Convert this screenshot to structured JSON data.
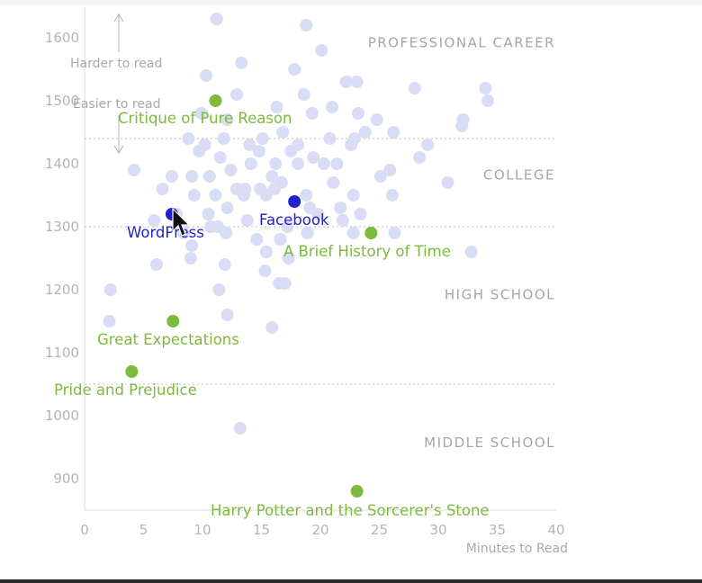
{
  "chart_data": {
    "type": "scatter",
    "title": "",
    "xlabel": "Minutes to Read",
    "ylabel": "",
    "xlim": [
      0,
      40
    ],
    "ylim": [
      850,
      1650
    ],
    "x_ticks": [
      0,
      5,
      10,
      15,
      20,
      25,
      30,
      35,
      40
    ],
    "y_ticks": [
      900,
      1000,
      1100,
      1200,
      1300,
      1400,
      1500,
      1600
    ],
    "grid": false,
    "colors": {
      "background_points": "#d9dcf5",
      "books": "#7cbb3c",
      "websites": "#2222cc",
      "bands": "#a6a6a6"
    },
    "bands": [
      {
        "label": "PROFESSIONAL CAREER",
        "lower": 1440
      },
      {
        "label": "COLLEGE",
        "lower": 1300
      },
      {
        "label": "HIGH SCHOOL",
        "lower": 1050
      },
      {
        "label": "MIDDLE SCHOOL",
        "lower": null
      }
    ],
    "annotations": {
      "harder": "Harder to read",
      "easier": "Easier to read"
    },
    "background_points": [
      [
        11.2,
        1630
      ],
      [
        18.8,
        1620
      ],
      [
        13.3,
        1560
      ],
      [
        17.8,
        1550
      ],
      [
        20.1,
        1580
      ],
      [
        10.3,
        1540
      ],
      [
        12.9,
        1510
      ],
      [
        18.6,
        1510
      ],
      [
        22.2,
        1530
      ],
      [
        23.1,
        1530
      ],
      [
        28,
        1520
      ],
      [
        34,
        1520
      ],
      [
        34.2,
        1500
      ],
      [
        9.9,
        1480
      ],
      [
        12.1,
        1470
      ],
      [
        16.3,
        1490
      ],
      [
        19.3,
        1480
      ],
      [
        21,
        1490
      ],
      [
        23.2,
        1480
      ],
      [
        24.8,
        1470
      ],
      [
        32.1,
        1470
      ],
      [
        32,
        1460
      ],
      [
        8.8,
        1440
      ],
      [
        10.2,
        1430
      ],
      [
        11.8,
        1440
      ],
      [
        14,
        1430
      ],
      [
        15.1,
        1440
      ],
      [
        16.8,
        1450
      ],
      [
        18.1,
        1430
      ],
      [
        20.8,
        1440
      ],
      [
        22.9,
        1440
      ],
      [
        23.8,
        1450
      ],
      [
        26.2,
        1450
      ],
      [
        29.1,
        1430
      ],
      [
        9.7,
        1420
      ],
      [
        11.5,
        1410
      ],
      [
        14.8,
        1420
      ],
      [
        16.2,
        1400
      ],
      [
        17.5,
        1420
      ],
      [
        19.4,
        1410
      ],
      [
        20.3,
        1400
      ],
      [
        22.6,
        1430
      ],
      [
        4.2,
        1390
      ],
      [
        7.4,
        1380
      ],
      [
        9.1,
        1380
      ],
      [
        10.6,
        1380
      ],
      [
        12.4,
        1390
      ],
      [
        14.1,
        1400
      ],
      [
        15.9,
        1380
      ],
      [
        18.1,
        1400
      ],
      [
        21.4,
        1400
      ],
      [
        25.1,
        1380
      ],
      [
        25.9,
        1390
      ],
      [
        28.4,
        1410
      ],
      [
        6.6,
        1360
      ],
      [
        9.3,
        1350
      ],
      [
        11.1,
        1350
      ],
      [
        12.9,
        1360
      ],
      [
        13.6,
        1360
      ],
      [
        15.4,
        1350
      ],
      [
        16.7,
        1370
      ],
      [
        18.8,
        1350
      ],
      [
        21.1,
        1370
      ],
      [
        22.8,
        1350
      ],
      [
        26.1,
        1350
      ],
      [
        30.8,
        1370
      ],
      [
        7.8,
        1320
      ],
      [
        10.5,
        1320
      ],
      [
        12.1,
        1330
      ],
      [
        13.5,
        1350
      ],
      [
        14.9,
        1360
      ],
      [
        16.1,
        1360
      ],
      [
        19.1,
        1330
      ],
      [
        21.7,
        1330
      ],
      [
        23.4,
        1320
      ],
      [
        5.9,
        1310
      ],
      [
        8.3,
        1300
      ],
      [
        11.3,
        1300
      ],
      [
        13.8,
        1310
      ],
      [
        17.2,
        1300
      ],
      [
        19.8,
        1320
      ],
      [
        21.9,
        1310
      ],
      [
        8.4,
        1290
      ],
      [
        10.7,
        1300
      ],
      [
        12,
        1290
      ],
      [
        16.6,
        1280
      ],
      [
        18.9,
        1290
      ],
      [
        22.8,
        1290
      ],
      [
        26.3,
        1290
      ],
      [
        9.1,
        1270
      ],
      [
        14.6,
        1280
      ],
      [
        15.4,
        1260
      ],
      [
        17.3,
        1250
      ],
      [
        32.8,
        1260
      ],
      [
        6.1,
        1240
      ],
      [
        9,
        1250
      ],
      [
        11.9,
        1240
      ],
      [
        15.3,
        1230
      ],
      [
        16.5,
        1210
      ],
      [
        17,
        1210
      ],
      [
        2.2,
        1200
      ],
      [
        11.4,
        1200
      ],
      [
        12.1,
        1160
      ],
      [
        2.1,
        1150
      ],
      [
        15.9,
        1140
      ],
      [
        13.2,
        980
      ]
    ],
    "highlights": [
      {
        "label": "Critique of Pure Reason",
        "x": 11.1,
        "y": 1500,
        "color": "#7cbb3c",
        "kind": "book"
      },
      {
        "label": "Facebook",
        "x": 17.8,
        "y": 1340,
        "color": "#2222cc",
        "kind": "website"
      },
      {
        "label": "WordPress",
        "x": 7.4,
        "y": 1320,
        "color": "#2222cc",
        "kind": "website"
      },
      {
        "label": "A Brief History of Time",
        "x": 24.3,
        "y": 1290,
        "color": "#7cbb3c",
        "kind": "book"
      },
      {
        "label": "Great Expectations",
        "x": 7.5,
        "y": 1150,
        "color": "#7cbb3c",
        "kind": "book"
      },
      {
        "label": "Pride and Prejudice",
        "x": 4.0,
        "y": 1070,
        "color": "#7cbb3c",
        "kind": "book"
      },
      {
        "label": "Harry Potter and the Sorcerer's Stone",
        "x": 23.1,
        "y": 880,
        "color": "#7cbb3c",
        "kind": "book"
      }
    ]
  }
}
